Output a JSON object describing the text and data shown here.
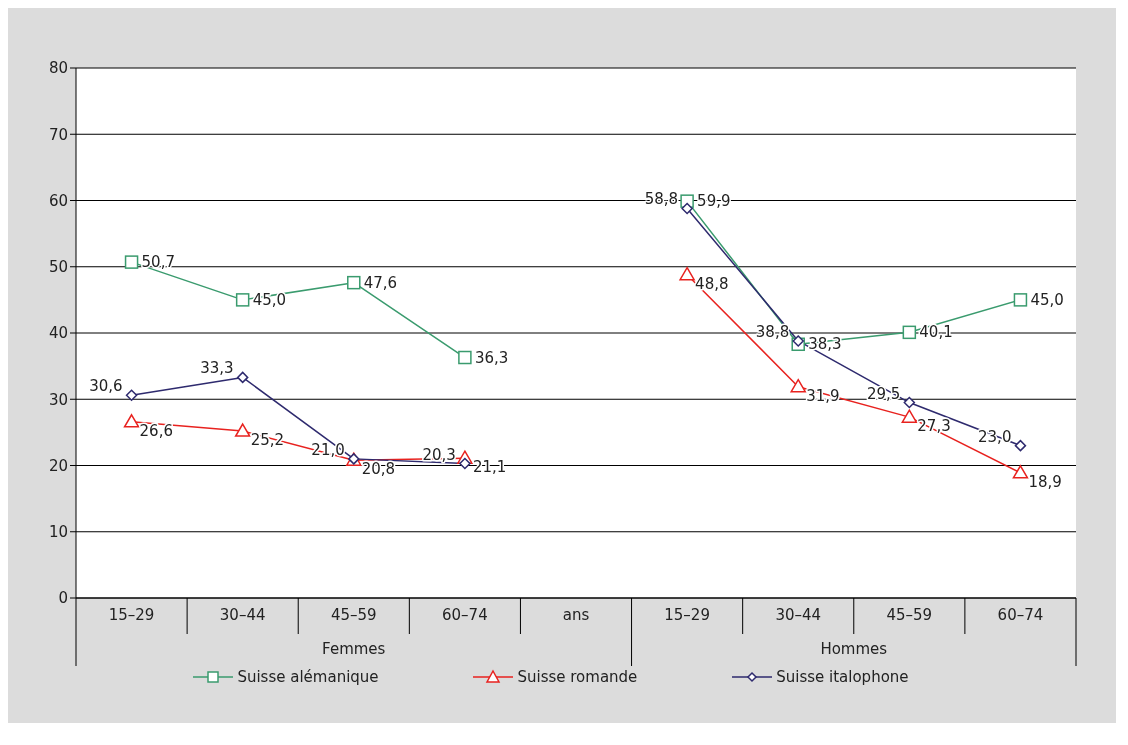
{
  "chart_data": {
    "type": "line",
    "categories": [
      "15–29",
      "30–44",
      "45–59",
      "60–74",
      "ans",
      "15–29",
      "30–44",
      "45–59",
      "60–74"
    ],
    "series": [
      {
        "name": "Suisse alémanique",
        "color": "#3a9b6e",
        "marker": "square",
        "values": [
          50.7,
          45.0,
          47.6,
          36.3,
          null,
          59.9,
          38.3,
          40.1,
          45.0
        ],
        "value_labels": [
          "50,7",
          "45,0",
          "47,6",
          "36,3",
          null,
          "59,9",
          "38,3",
          "40,1",
          "45,0"
        ]
      },
      {
        "name": "Suisse romande",
        "color": "#e8221f",
        "marker": "triangle",
        "values": [
          26.6,
          25.2,
          20.8,
          21.1,
          null,
          48.8,
          31.9,
          27.3,
          18.9
        ],
        "value_labels": [
          "26,6",
          "25,2",
          "20,8",
          "21,1",
          null,
          "48,8",
          "31,9",
          "27,3",
          "18,9"
        ]
      },
      {
        "name": "Suisse italophone",
        "color": "#2e2a6e",
        "marker": "diamond",
        "values": [
          30.6,
          33.3,
          21.0,
          20.3,
          null,
          58.8,
          38.8,
          29.5,
          23.0
        ],
        "value_labels": [
          "30,6",
          "33,3",
          "21,0",
          "20,3",
          null,
          "58,8",
          "38,8",
          "29,5",
          "23,0"
        ]
      }
    ],
    "annotations": [
      "Femmes",
      "Hommes"
    ],
    "ylim": [
      0,
      80
    ],
    "yticks": [
      0,
      10,
      20,
      30,
      40,
      50,
      60,
      70,
      80
    ],
    "grid": "y",
    "legend": "bottom",
    "line_style": "solid"
  }
}
